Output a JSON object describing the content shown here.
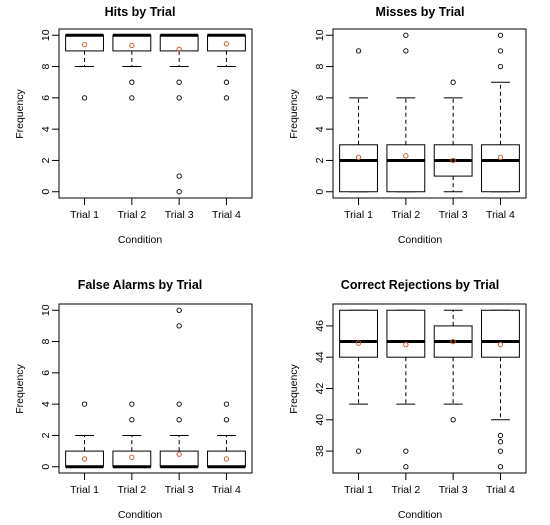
{
  "figure": {
    "background": "#ffffff"
  },
  "chart_data": [
    {
      "type": "box",
      "title": "Hits by Trial",
      "xlabel": "Condition",
      "ylabel": "Frequency",
      "categories": [
        "Trial 1",
        "Trial 2",
        "Trial 3",
        "Trial 4"
      ],
      "ylim": [
        -0.4,
        10.4
      ],
      "yticks": [
        0,
        2,
        4,
        6,
        8,
        10
      ],
      "boxes": [
        {
          "min": 8,
          "q1": 9,
          "median": 10,
          "q3": 10,
          "max": 10,
          "mean": 9.4,
          "outliers": [
            6
          ]
        },
        {
          "min": 8,
          "q1": 9,
          "median": 10,
          "q3": 10,
          "max": 10,
          "mean": 9.35,
          "outliers": [
            7,
            6
          ]
        },
        {
          "min": 8,
          "q1": 9,
          "median": 10,
          "q3": 10,
          "max": 10,
          "mean": 9.1,
          "outliers": [
            7,
            6,
            1,
            0
          ]
        },
        {
          "min": 8,
          "q1": 9,
          "median": 10,
          "q3": 10,
          "max": 10,
          "mean": 9.45,
          "outliers": [
            7,
            6
          ]
        }
      ],
      "colors": {
        "box": "#000000",
        "mean": "#c8643c"
      }
    },
    {
      "type": "box",
      "title": "Misses by Trial",
      "xlabel": "Condition",
      "ylabel": "Frequency",
      "categories": [
        "Trial 1",
        "Trial 2",
        "Trial 3",
        "Trial 4"
      ],
      "ylim": [
        -0.4,
        10.4
      ],
      "yticks": [
        0,
        2,
        4,
        6,
        8,
        10
      ],
      "boxes": [
        {
          "min": 0,
          "q1": 0,
          "median": 2,
          "q3": 3,
          "max": 6,
          "mean": 2.2,
          "outliers": [
            9
          ]
        },
        {
          "min": 0,
          "q1": 0,
          "median": 2,
          "q3": 3,
          "max": 6,
          "mean": 2.3,
          "outliers": [
            9,
            10
          ]
        },
        {
          "min": 0,
          "q1": 1,
          "median": 2,
          "q3": 3,
          "max": 6,
          "mean": 2.0,
          "outliers": [
            7
          ]
        },
        {
          "min": 0,
          "q1": 0,
          "median": 2,
          "q3": 3,
          "max": 7,
          "mean": 2.2,
          "outliers": [
            8,
            9,
            10
          ]
        }
      ],
      "colors": {
        "box": "#000000",
        "mean": "#c8643c"
      }
    },
    {
      "type": "box",
      "title": "False Alarms by Trial",
      "xlabel": "Condition",
      "ylabel": "Frequency",
      "categories": [
        "Trial 1",
        "Trial 2",
        "Trial 3",
        "Trial 4"
      ],
      "ylim": [
        -0.4,
        10.4
      ],
      "yticks": [
        0,
        2,
        4,
        6,
        8,
        10
      ],
      "boxes": [
        {
          "min": 0,
          "q1": 0,
          "median": 0,
          "q3": 1,
          "max": 2,
          "mean": 0.5,
          "outliers": [
            4
          ]
        },
        {
          "min": 0,
          "q1": 0,
          "median": 0,
          "q3": 1,
          "max": 2,
          "mean": 0.6,
          "outliers": [
            3,
            4
          ]
        },
        {
          "min": 0,
          "q1": 0,
          "median": 0,
          "q3": 1,
          "max": 2,
          "mean": 0.8,
          "outliers": [
            3,
            4,
            9,
            10
          ]
        },
        {
          "min": 0,
          "q1": 0,
          "median": 0,
          "q3": 1,
          "max": 2,
          "mean": 0.5,
          "outliers": [
            3,
            4
          ]
        }
      ],
      "colors": {
        "box": "#000000",
        "mean": "#c8643c"
      }
    },
    {
      "type": "box",
      "title": "Correct Rejections by Trial",
      "xlabel": "Condition",
      "ylabel": "Frequency",
      "categories": [
        "Trial 1",
        "Trial 2",
        "Trial 3",
        "Trial 4"
      ],
      "ylim": [
        36.6,
        47.4
      ],
      "yticks": [
        38,
        40,
        42,
        44,
        46
      ],
      "boxes": [
        {
          "min": 41,
          "q1": 44,
          "median": 45,
          "q3": 47,
          "max": 47,
          "mean": 44.9,
          "outliers": [
            38
          ]
        },
        {
          "min": 41,
          "q1": 44,
          "median": 45,
          "q3": 47,
          "max": 47,
          "mean": 44.8,
          "outliers": [
            38,
            37
          ]
        },
        {
          "min": 41,
          "q1": 44,
          "median": 45,
          "q3": 46,
          "max": 47,
          "mean": 45.0,
          "outliers": [
            40
          ]
        },
        {
          "min": 40,
          "q1": 44,
          "median": 45,
          "q3": 47,
          "max": 47,
          "mean": 44.8,
          "outliers": [
            39,
            38.6,
            38,
            37
          ]
        }
      ],
      "colors": {
        "box": "#000000",
        "mean": "#c8643c"
      }
    }
  ]
}
